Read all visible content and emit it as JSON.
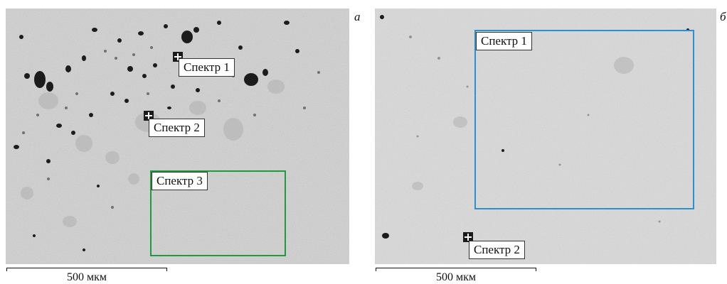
{
  "colors": {
    "background": "#ffffff",
    "micrograph_background": "#d8d8d8",
    "region_a_border": "#1f9a3e",
    "region_b_border": "#2a90d0",
    "text": "#111111"
  },
  "panels": [
    {
      "id": "a",
      "letter": "а",
      "markers": [
        {
          "label": "Спектр 1"
        },
        {
          "label": "Спектр 2"
        }
      ],
      "region": {
        "label": "Спектр 3"
      },
      "scale_label": "500 мкм"
    },
    {
      "id": "b",
      "letter": "б",
      "region": {
        "label": "Спектр 1"
      },
      "markers": [
        {
          "label": "Спектр 2"
        }
      ],
      "scale_label": "500 мкм"
    }
  ]
}
